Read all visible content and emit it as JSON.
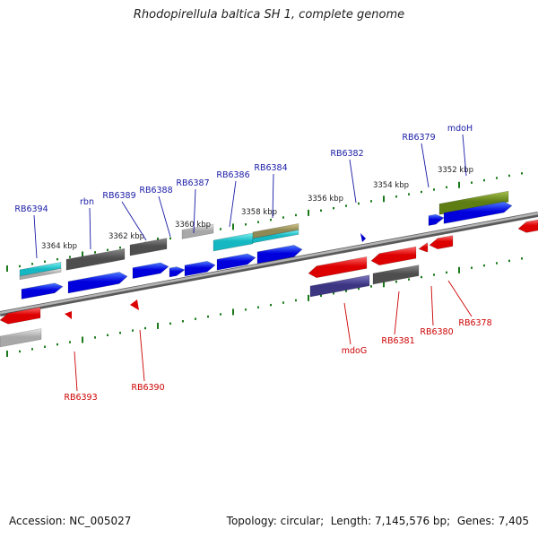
{
  "title": "Rhodopirellula baltica SH 1, complete genome",
  "footer": {
    "accession_label": "Accession:",
    "accession": "NC_005027",
    "topology_label": "Topology:",
    "topology": "circular",
    "length_label": "Length:",
    "length": "7,145,576 bp",
    "genes_label": "Genes:",
    "genes": "7,405"
  },
  "scale_labels": [
    "3352 kbp",
    "3354 kbp",
    "3356 kbp",
    "3358 kbp",
    "3360 kbp",
    "3362 kbp",
    "3364 kbp"
  ],
  "forward_genes": [
    "mdoH",
    "RB6379",
    "RB6382",
    "RB6384",
    "RB6386",
    "RB6387",
    "RB6388",
    "RB6389",
    "rbn",
    "RB6394"
  ],
  "reverse_genes": [
    "RB6378",
    "RB6380",
    "RB6381",
    "mdoG",
    "RB6390",
    "RB6393"
  ],
  "colors": {
    "forward_label": "#1a1aa6",
    "reverse_label": "#cc0000",
    "tick": "#1a7a1a",
    "backbone": "#8a8a8a",
    "cds_forward": "#0000ee",
    "cds_reverse": "#ee0000"
  }
}
